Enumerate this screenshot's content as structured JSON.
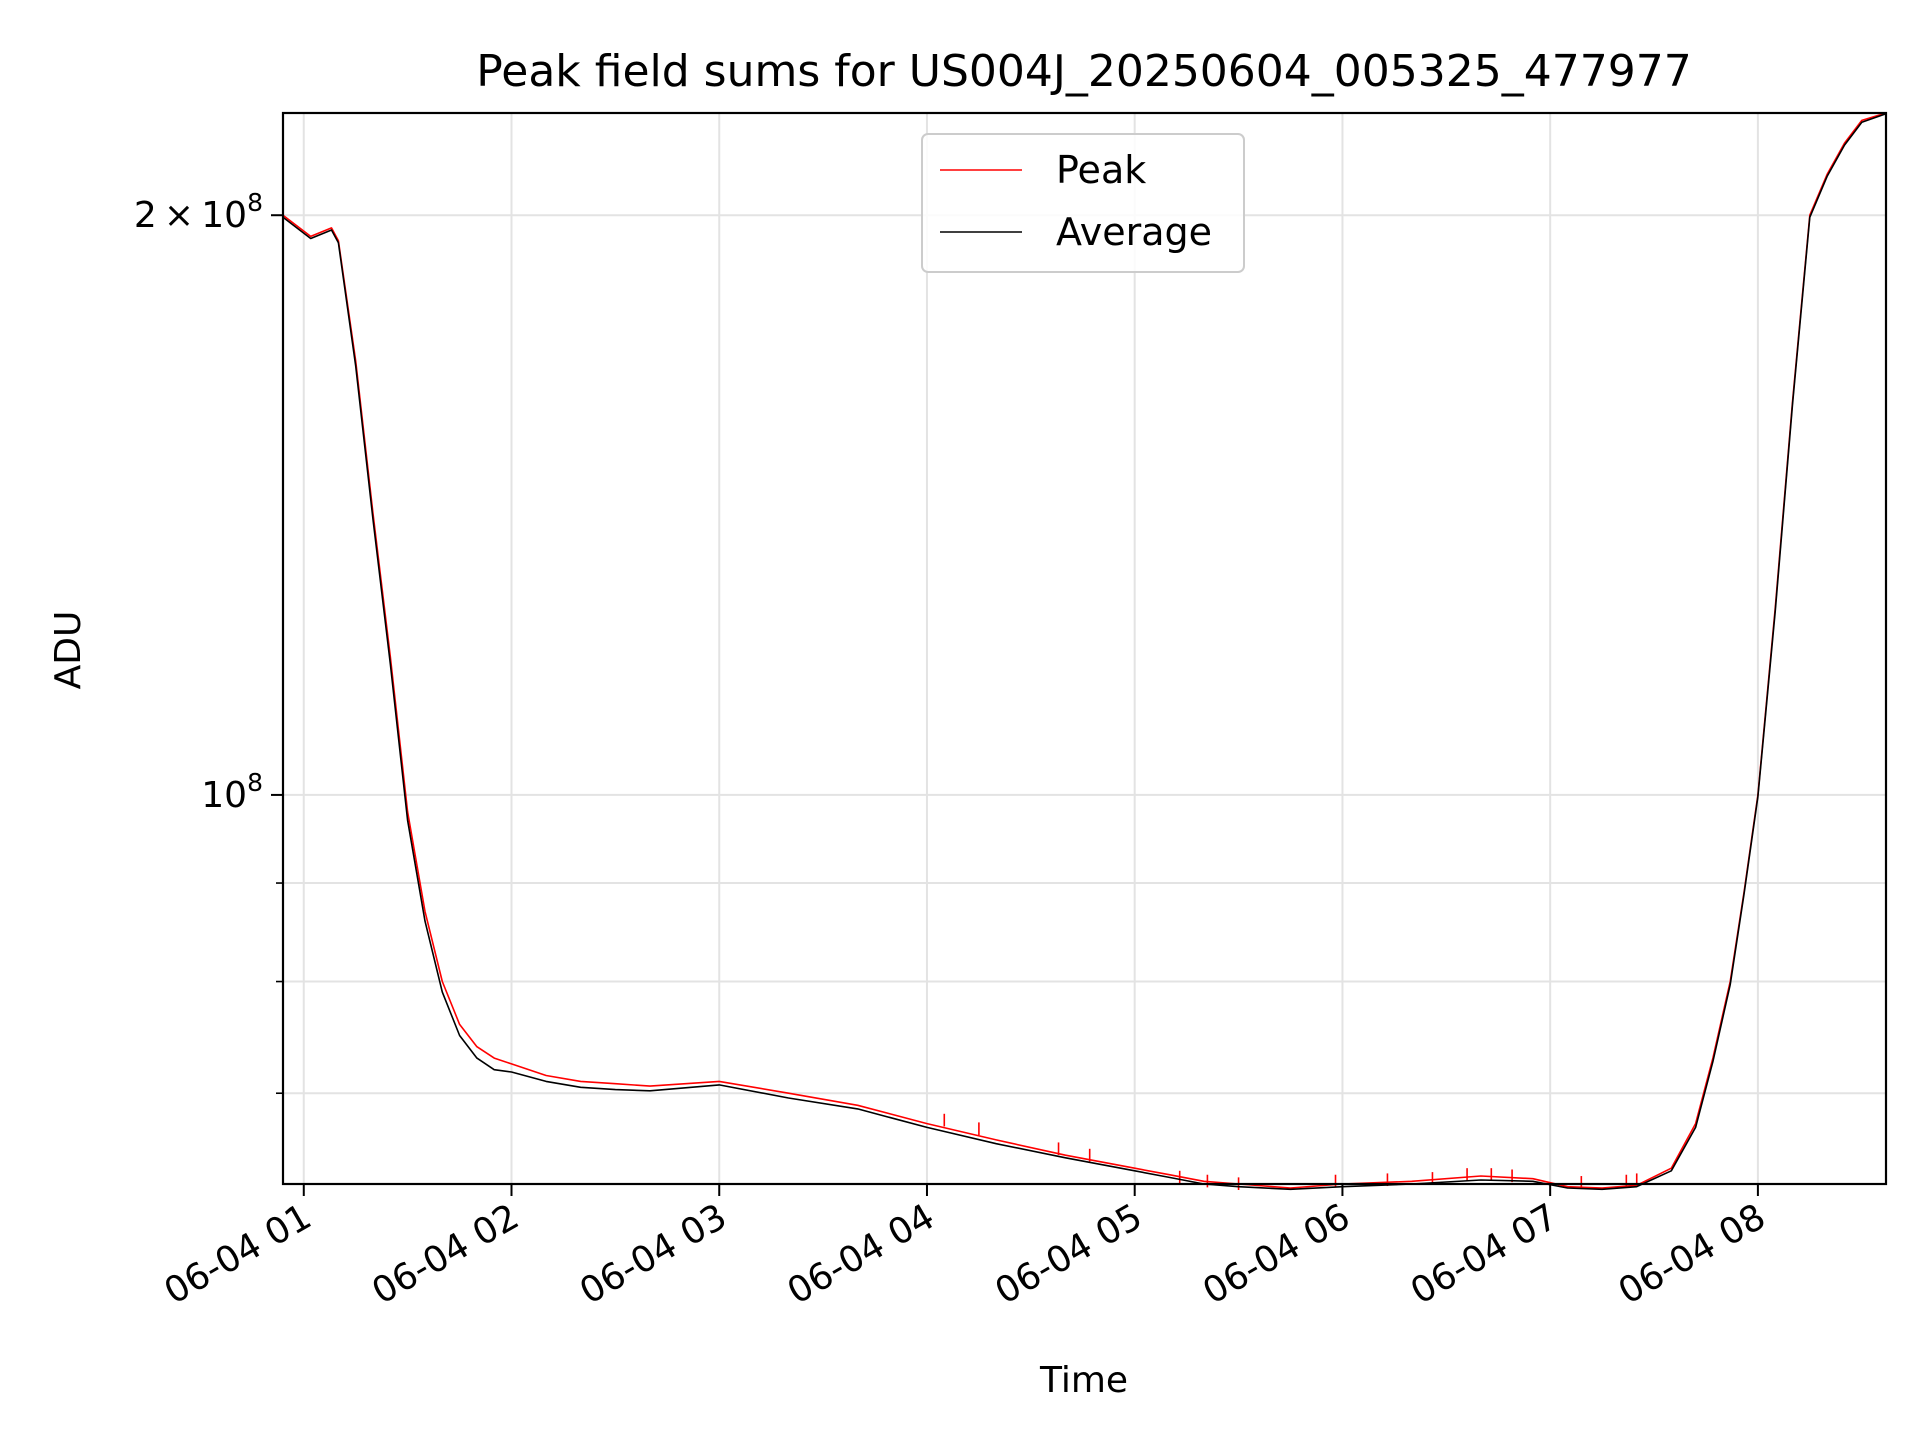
{
  "chart_data": {
    "type": "line",
    "title": "Peak field sums for US004J_20250604_005325_477977",
    "xlabel": "Time",
    "ylabel": "ADU",
    "yscale": "log",
    "xlim": [
      "2025-06-04 00:54",
      "2025-06-04 08:37"
    ],
    "ylim": [
      62800000,
      226000000
    ],
    "grid": true,
    "legend_position": "top-center",
    "x_ticks": [
      {
        "value": "2025-06-04 01:00",
        "label": "06-04 01"
      },
      {
        "value": "2025-06-04 02:00",
        "label": "06-04 02"
      },
      {
        "value": "2025-06-04 03:00",
        "label": "06-04 03"
      },
      {
        "value": "2025-06-04 04:00",
        "label": "06-04 04"
      },
      {
        "value": "2025-06-04 05:00",
        "label": "06-04 05"
      },
      {
        "value": "2025-06-04 06:00",
        "label": "06-04 06"
      },
      {
        "value": "2025-06-04 07:00",
        "label": "06-04 07"
      },
      {
        "value": "2025-06-04 08:00",
        "label": "06-04 08"
      }
    ],
    "y_major_ticks": [
      {
        "value": 200000000,
        "mantissa": "2",
        "times": "×",
        "base": "10",
        "exp": "8"
      },
      {
        "value": 100000000,
        "mantissa": "",
        "times": "",
        "base": "10",
        "exp": "8"
      }
    ],
    "y_minor_ticks": [
      90000000,
      80000000,
      70000000,
      60000000
    ],
    "x": [
      "2025-06-04 00:54",
      "2025-06-04 01:02",
      "2025-06-04 01:05",
      "2025-06-04 01:08",
      "2025-06-04 01:10",
      "2025-06-04 01:15",
      "2025-06-04 01:20",
      "2025-06-04 01:25",
      "2025-06-04 01:30",
      "2025-06-04 01:35",
      "2025-06-04 01:40",
      "2025-06-04 01:45",
      "2025-06-04 01:50",
      "2025-06-04 01:55",
      "2025-06-04 02:00",
      "2025-06-04 02:10",
      "2025-06-04 02:20",
      "2025-06-04 02:30",
      "2025-06-04 02:40",
      "2025-06-04 03:00",
      "2025-06-04 03:20",
      "2025-06-04 03:40",
      "2025-06-04 04:00",
      "2025-06-04 04:20",
      "2025-06-04 04:40",
      "2025-06-04 05:00",
      "2025-06-04 05:10",
      "2025-06-04 05:20",
      "2025-06-04 05:30",
      "2025-06-04 05:45",
      "2025-06-04 06:00",
      "2025-06-04 06:20",
      "2025-06-04 06:40",
      "2025-06-04 06:55",
      "2025-06-04 07:05",
      "2025-06-04 07:15",
      "2025-06-04 07:25",
      "2025-06-04 07:35",
      "2025-06-04 07:42",
      "2025-06-04 07:47",
      "2025-06-04 07:52",
      "2025-06-04 07:56",
      "2025-06-04 08:00",
      "2025-06-04 08:05",
      "2025-06-04 08:10",
      "2025-06-04 08:15",
      "2025-06-04 08:20",
      "2025-06-04 08:25",
      "2025-06-04 08:30",
      "2025-06-04 08:37"
    ],
    "series": [
      {
        "name": "Peak",
        "color": "#ff0000",
        "values": [
          200000000,
          195000000,
          196000000,
          197000000,
          194000000,
          168000000,
          140000000,
          118000000,
          98000000,
          87000000,
          80000000,
          76000000,
          74000000,
          73000000,
          72500000,
          71500000,
          71000000,
          70800000,
          70600000,
          71000000,
          70000000,
          69000000,
          67500000,
          66200000,
          65000000,
          64000000,
          63500000,
          63000000,
          62800000,
          62500000,
          62800000,
          63000000,
          63400000,
          63200000,
          62600000,
          62500000,
          62700000,
          64000000,
          67500000,
          73000000,
          80000000,
          89000000,
          100000000,
          125000000,
          160000000,
          200000000,
          210000000,
          218000000,
          224000000,
          226000000
        ]
      },
      {
        "name": "Average",
        "color": "#000000",
        "values": [
          199500000,
          194500000,
          195500000,
          196500000,
          193500000,
          167000000,
          139000000,
          117000000,
          97000000,
          86000000,
          79000000,
          75000000,
          73000000,
          72000000,
          71800000,
          71000000,
          70500000,
          70300000,
          70200000,
          70700000,
          69600000,
          68700000,
          67200000,
          65900000,
          64800000,
          63800000,
          63300000,
          62800000,
          62600000,
          62400000,
          62600000,
          62800000,
          63100000,
          63000000,
          62500000,
          62400000,
          62600000,
          63800000,
          67200000,
          72700000,
          79700000,
          88800000,
          99800000,
          124500000,
          159500000,
          199500000,
          209500000,
          217500000,
          223500000,
          225800000
        ]
      }
    ],
    "spikes": [
      {
        "x": "2025-06-04 04:05",
        "value": 68300000
      },
      {
        "x": "2025-06-04 04:15",
        "value": 67600000
      },
      {
        "x": "2025-06-04 04:38",
        "value": 66000000
      },
      {
        "x": "2025-06-04 04:47",
        "value": 65500000
      },
      {
        "x": "2025-06-04 05:13",
        "value": 63800000
      },
      {
        "x": "2025-06-04 05:21",
        "value": 63500000
      },
      {
        "x": "2025-06-04 05:30",
        "value": 63300000
      },
      {
        "x": "2025-06-04 05:58",
        "value": 63500000
      },
      {
        "x": "2025-06-04 06:13",
        "value": 63600000
      },
      {
        "x": "2025-06-04 06:26",
        "value": 63700000
      },
      {
        "x": "2025-06-04 06:36",
        "value": 64000000
      },
      {
        "x": "2025-06-04 06:43",
        "value": 64000000
      },
      {
        "x": "2025-06-04 06:49",
        "value": 63900000
      },
      {
        "x": "2025-06-04 07:09",
        "value": 63400000
      },
      {
        "x": "2025-06-04 07:22",
        "value": 63500000
      },
      {
        "x": "2025-06-04 07:25",
        "value": 63600000
      }
    ]
  }
}
